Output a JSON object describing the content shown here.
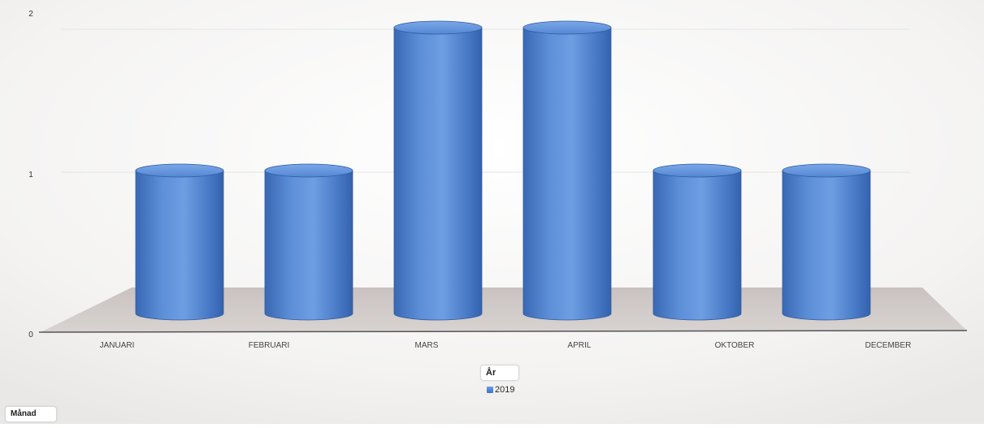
{
  "chart_data": {
    "type": "bar",
    "bar_shape": "3d-cylinder",
    "categories": [
      "JANUARI",
      "FEBRUARI",
      "MARS",
      "APRIL",
      "OKTOBER",
      "DECEMBER"
    ],
    "series": [
      {
        "name": "2019",
        "values": [
          1,
          1,
          2,
          2,
          1,
          1
        ]
      }
    ],
    "y_ticks": [
      0,
      1,
      2
    ],
    "ylim": [
      0,
      2
    ],
    "grid": true,
    "legend_title": "År",
    "legend_placement": "bottom-center",
    "axis_field_label": "Månad"
  },
  "colors": {
    "bar": "#4a7fcf",
    "bar_light": "#7aa6e6",
    "bar_dark": "#2e5ea8",
    "floor": "#cdc8c6",
    "background": "#f2f1f0"
  }
}
